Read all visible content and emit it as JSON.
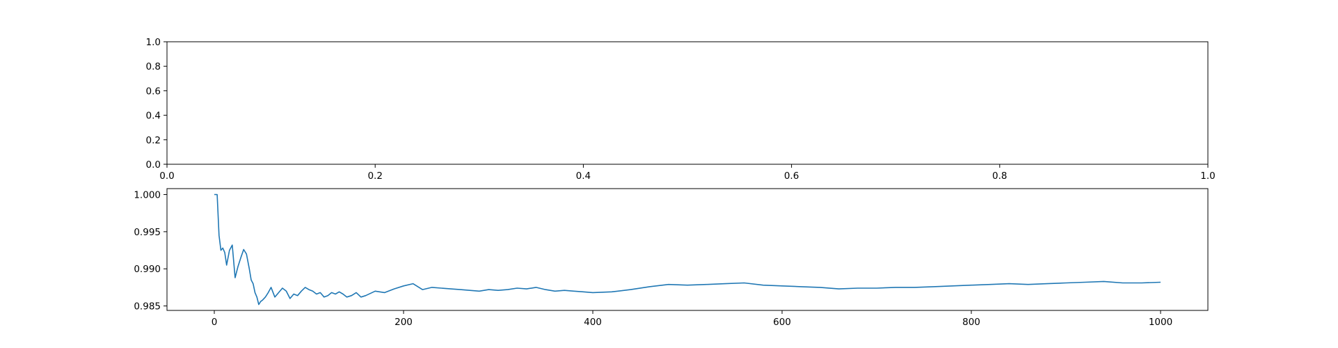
{
  "chart_data": [
    {
      "type": "line",
      "title": "",
      "xlabel": "",
      "ylabel": "",
      "xlim": [
        0.0,
        1.0
      ],
      "ylim": [
        0.0,
        1.0
      ],
      "grid": false,
      "series": [],
      "x_ticks": [
        "0.0",
        "0.2",
        "0.4",
        "0.6",
        "0.8",
        "1.0"
      ],
      "y_ticks": [
        "0.0",
        "0.2",
        "0.4",
        "0.6",
        "0.8",
        "1.0"
      ]
    },
    {
      "type": "line",
      "title": "",
      "xlabel": "",
      "ylabel": "",
      "xlim": [
        -50,
        1050
      ],
      "ylim": [
        0.9844,
        1.0008
      ],
      "grid": false,
      "x_ticks": [
        "0",
        "200",
        "400",
        "600",
        "800",
        "1000"
      ],
      "y_ticks": [
        "0.985",
        "0.990",
        "0.995",
        "1.000"
      ],
      "series": [
        {
          "color": "#1f77b4",
          "x": [
            0,
            3,
            5,
            7,
            9,
            11,
            13,
            16,
            19,
            22,
            25,
            28,
            31,
            34,
            37,
            39,
            41,
            43,
            45,
            47,
            49,
            51,
            54,
            57,
            60,
            64,
            68,
            72,
            76,
            80,
            84,
            88,
            92,
            96,
            100,
            104,
            108,
            112,
            116,
            120,
            124,
            128,
            132,
            136,
            140,
            145,
            150,
            155,
            160,
            170,
            180,
            190,
            200,
            210,
            220,
            230,
            240,
            250,
            260,
            270,
            280,
            290,
            300,
            310,
            320,
            330,
            340,
            350,
            360,
            370,
            380,
            390,
            400,
            420,
            440,
            460,
            480,
            500,
            520,
            540,
            560,
            580,
            600,
            620,
            640,
            660,
            680,
            700,
            720,
            740,
            760,
            780,
            800,
            820,
            840,
            860,
            880,
            900,
            920,
            940,
            960,
            980,
            1000
          ],
          "y": [
            1.0,
            1.0,
            0.9945,
            0.9925,
            0.9928,
            0.9922,
            0.9905,
            0.9925,
            0.9932,
            0.9888,
            0.9903,
            0.9915,
            0.9926,
            0.992,
            0.99,
            0.9885,
            0.988,
            0.9868,
            0.9862,
            0.9852,
            0.9856,
            0.9858,
            0.9862,
            0.9868,
            0.9875,
            0.9862,
            0.9868,
            0.9874,
            0.987,
            0.986,
            0.9866,
            0.9864,
            0.987,
            0.9875,
            0.9872,
            0.987,
            0.9866,
            0.9868,
            0.9862,
            0.9864,
            0.9868,
            0.9866,
            0.9869,
            0.9866,
            0.9862,
            0.9864,
            0.9868,
            0.9862,
            0.9864,
            0.987,
            0.9868,
            0.9873,
            0.9877,
            0.988,
            0.9872,
            0.9875,
            0.9874,
            0.9873,
            0.9872,
            0.9871,
            0.987,
            0.9872,
            0.9871,
            0.9872,
            0.9874,
            0.9873,
            0.9875,
            0.9872,
            0.987,
            0.9871,
            0.987,
            0.9869,
            0.9868,
            0.9869,
            0.9872,
            0.9876,
            0.9879,
            0.9878,
            0.9879,
            0.988,
            0.9881,
            0.9878,
            0.9877,
            0.9876,
            0.9875,
            0.9873,
            0.9874,
            0.9874,
            0.9875,
            0.9875,
            0.9876,
            0.9877,
            0.9878,
            0.9879,
            0.988,
            0.9879,
            0.988,
            0.9881,
            0.9882,
            0.9883,
            0.9881,
            0.9881,
            0.9882
          ]
        }
      ]
    }
  ]
}
